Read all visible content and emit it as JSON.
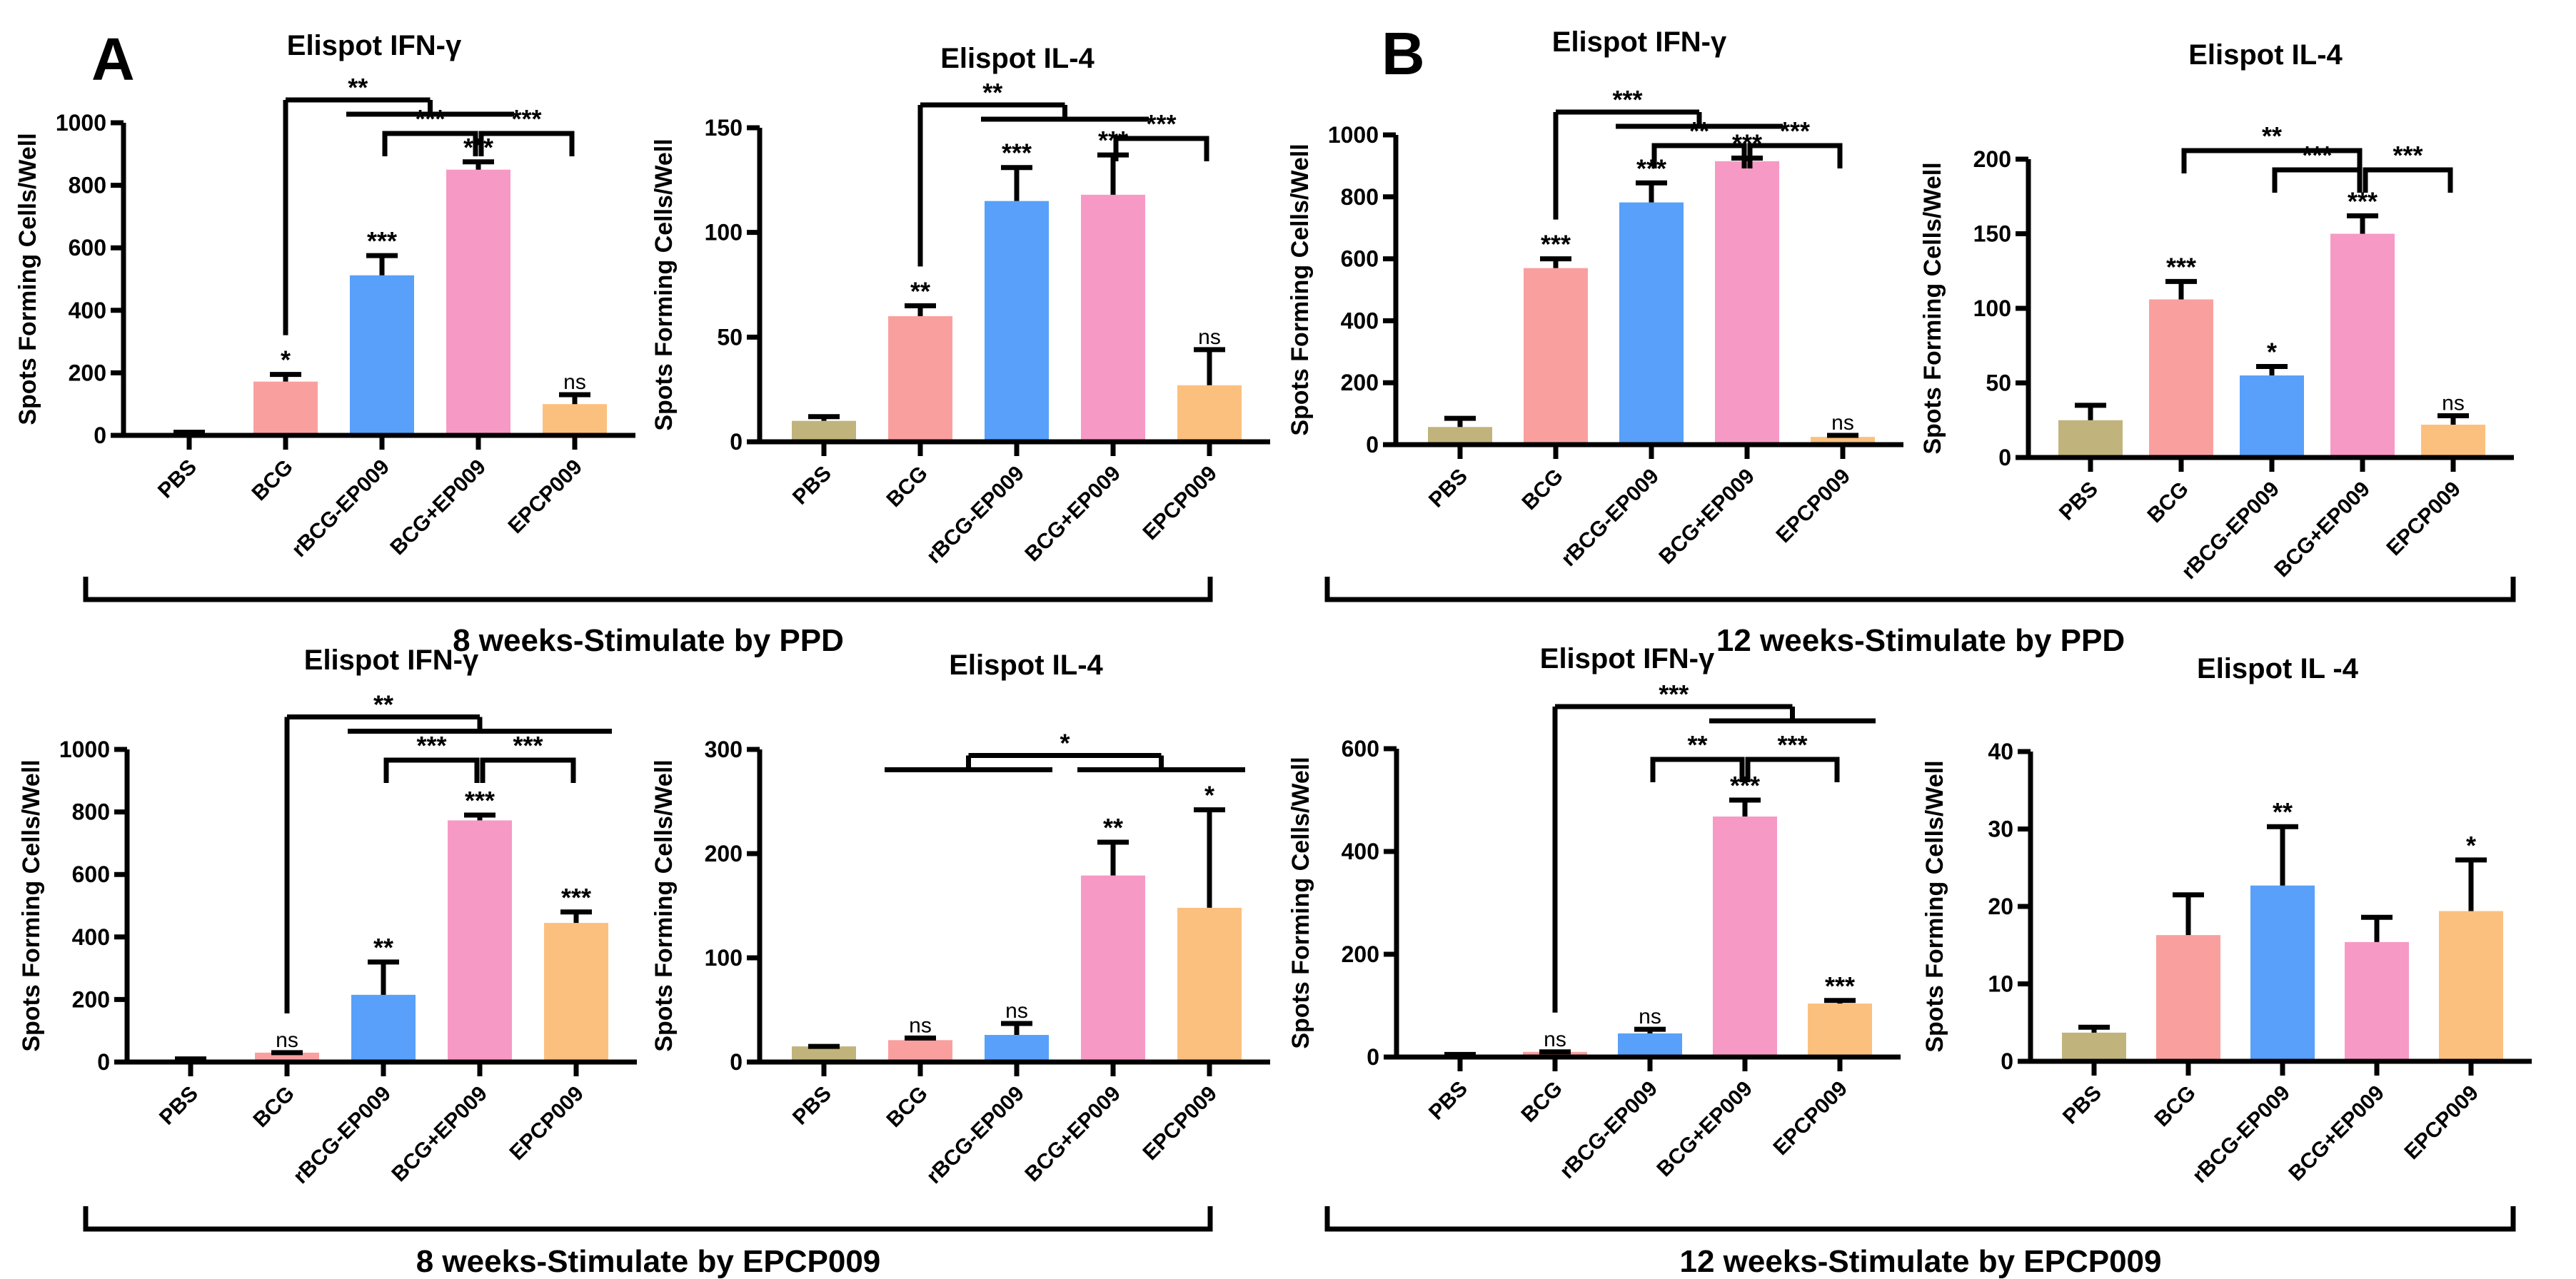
{
  "panel_letters": {
    "a": "A",
    "b": "B"
  },
  "section_labels": {
    "a_top": "8 weeks-Stimulate by PPD",
    "b_top": "12 weeks-Stimulate by PPD",
    "a_bottom": "8 weeks-Stimulate by EPCP009",
    "b_bottom": "12 weeks-Stimulate by EPCP009"
  },
  "colors": {
    "PBS": "#C0B47C",
    "BCG": "#F9A09F",
    "rBCG-EP009": "#58A0F9",
    "BCG+EP009": "#F799C5",
    "EPCP009": "#FCC07E"
  },
  "chart_data": [
    {
      "type": "bar",
      "title": "Elispot  IFN-γ",
      "ylabel": "Spots Forming Cells/Well",
      "xlabel": "",
      "categories": [
        "PBS",
        "BCG",
        "rBCG-EP009",
        "BCG+EP009",
        "EPCP009"
      ],
      "values": [
        5,
        172,
        512,
        850,
        100
      ],
      "error_upper": [
        10,
        195,
        575,
        875,
        130
      ],
      "ylim": [
        0,
        1000
      ],
      "yticks": [
        0,
        200,
        400,
        600,
        800,
        1000
      ],
      "significance": [
        "",
        "*",
        "***",
        "***",
        "ns"
      ],
      "comparisons": [
        {
          "from": [
            2
          ],
          "to": [
            3
          ],
          "label": "***",
          "level": 0
        },
        {
          "from": [
            3
          ],
          "to": [
            4
          ],
          "label": "***",
          "level": 0
        },
        {
          "from": [
            1
          ],
          "to": [
            2,
            3
          ],
          "label": "**",
          "level": 1
        }
      ]
    },
    {
      "type": "bar",
      "title": "Elispot  IL-4",
      "ylabel": "Spots Forming Cells/Well",
      "xlabel": "",
      "categories": [
        "PBS",
        "BCG",
        "rBCG-EP009",
        "BCG+EP009",
        "EPCP009"
      ],
      "values": [
        10,
        60,
        115,
        118,
        27
      ],
      "error_upper": [
        12,
        65,
        131,
        137,
        44
      ],
      "ylim": [
        0,
        150
      ],
      "yticks": [
        0,
        50,
        100,
        150
      ],
      "significance": [
        "",
        "**",
        "***",
        "***",
        "ns"
      ],
      "comparisons": [
        {
          "from": [
            3
          ],
          "to": [
            4
          ],
          "label": "***",
          "level": 0
        },
        {
          "from": [
            1
          ],
          "to": [
            2,
            3
          ],
          "label": "**",
          "level": 1
        }
      ]
    },
    {
      "type": "bar",
      "title": "Elispot  IFN-γ",
      "ylabel": "Spots Forming Cells/Well",
      "xlabel": "",
      "categories": [
        "PBS",
        "BCG",
        "rBCG-EP009",
        "BCG+EP009",
        "EPCP009"
      ],
      "values": [
        57,
        570,
        782,
        915,
        25
      ],
      "error_upper": [
        85,
        600,
        845,
        925,
        30
      ],
      "ylim": [
        0,
        1000
      ],
      "yticks": [
        0,
        200,
        400,
        600,
        800,
        1000
      ],
      "significance": [
        "",
        "***",
        "***",
        "***",
        "ns"
      ],
      "comparisons": [
        {
          "from": [
            2
          ],
          "to": [
            3
          ],
          "label": "**",
          "level": 0
        },
        {
          "from": [
            3
          ],
          "to": [
            4
          ],
          "label": "***",
          "level": 0
        },
        {
          "from": [
            1
          ],
          "to": [
            2,
            3
          ],
          "label": "***",
          "level": 1
        }
      ]
    },
    {
      "type": "bar",
      "title": "Elispot    IL-4",
      "ylabel": "Spots Forming Cells/Well",
      "xlabel": "",
      "categories": [
        "PBS",
        "BCG",
        "rBCG-EP009",
        "BCG+EP009",
        "EPCP009"
      ],
      "values": [
        25,
        106,
        55,
        150,
        22
      ],
      "error_upper": [
        35,
        118,
        61,
        162,
        28
      ],
      "ylim": [
        0,
        200
      ],
      "yticks": [
        0,
        50,
        100,
        150,
        200
      ],
      "significance": [
        "",
        "***",
        "*",
        "***",
        "ns"
      ],
      "comparisons": [
        {
          "from": [
            2
          ],
          "to": [
            3
          ],
          "label": "***",
          "level": 0
        },
        {
          "from": [
            3
          ],
          "to": [
            4
          ],
          "label": "***",
          "level": 0
        },
        {
          "from": [
            1
          ],
          "to": [
            3
          ],
          "label": "**",
          "level": 1
        }
      ]
    },
    {
      "type": "bar",
      "title": "Elispot  IFN-γ",
      "ylabel": "Spots Forming Cells/Well",
      "xlabel": "",
      "categories": [
        "PBS",
        "BCG",
        "rBCG-EP009",
        "BCG+EP009",
        "EPCP009"
      ],
      "values": [
        5,
        30,
        215,
        773,
        445
      ],
      "error_upper": [
        10,
        30,
        320,
        790,
        480
      ],
      "ylim": [
        0,
        1000
      ],
      "yticks": [
        0,
        200,
        400,
        600,
        800,
        1000
      ],
      "significance": [
        "",
        "ns",
        "**",
        "***",
        "***"
      ],
      "comparisons": [
        {
          "from": [
            2
          ],
          "to": [
            3
          ],
          "label": "***",
          "level": 0
        },
        {
          "from": [
            3
          ],
          "to": [
            4
          ],
          "label": "***",
          "level": 0
        },
        {
          "from": [
            1
          ],
          "to": [
            2,
            3,
            4
          ],
          "label": "**",
          "level": 1.5
        }
      ]
    },
    {
      "type": "bar",
      "title": "Elispot  IL-4",
      "ylabel": "Spots Forming Cells/Well",
      "xlabel": "",
      "categories": [
        "PBS",
        "BCG",
        "rBCG-EP009",
        "BCG+EP009",
        "EPCP009"
      ],
      "values": [
        15,
        21,
        26,
        179,
        148
      ],
      "error_upper": [
        15,
        23,
        37,
        211,
        242
      ],
      "ylim": [
        0,
        300
      ],
      "yticks": [
        0,
        100,
        200,
        300
      ],
      "significance": [
        "",
        "ns",
        "ns",
        "**",
        "*"
      ],
      "comparisons": [
        {
          "from": [
            1,
            2
          ],
          "to": [
            3,
            4
          ],
          "label": "*",
          "level": -0.5
        }
      ]
    },
    {
      "type": "bar",
      "title": "Elispot  IFN-γ",
      "ylabel": "Spots Forming Cells/Well",
      "xlabel": "",
      "categories": [
        "PBS",
        "BCG",
        "rBCG-EP009",
        "BCG+EP009",
        "EPCP009"
      ],
      "values": [
        3,
        10,
        46,
        468,
        104
      ],
      "error_upper": [
        5,
        10,
        54,
        500,
        110
      ],
      "ylim": [
        0,
        600
      ],
      "yticks": [
        0,
        200,
        400,
        600
      ],
      "significance": [
        "",
        "ns",
        "ns",
        "***",
        "***"
      ],
      "comparisons": [
        {
          "from": [
            2
          ],
          "to": [
            3
          ],
          "label": "**",
          "level": 0
        },
        {
          "from": [
            3
          ],
          "to": [
            4
          ],
          "label": "***",
          "level": 0
        },
        {
          "from": [
            1
          ],
          "to": [
            3,
            4
          ],
          "label": "***",
          "level": 2
        }
      ]
    },
    {
      "type": "bar",
      "title": "Elispot    IL -4",
      "ylabel": "Spots Forming Cells/Well",
      "xlabel": "",
      "categories": [
        "PBS",
        "BCG",
        "rBCG-EP009",
        "BCG+EP009",
        "EPCP009"
      ],
      "values": [
        3.7,
        16.3,
        22.7,
        15.4,
        19.4
      ],
      "error_upper": [
        4.4,
        21.5,
        30.3,
        18.6,
        26
      ],
      "ylim": [
        0,
        40
      ],
      "yticks": [
        0,
        10,
        20,
        30,
        40
      ],
      "significance": [
        "",
        "",
        "**",
        "",
        "*"
      ],
      "comparisons": []
    }
  ]
}
